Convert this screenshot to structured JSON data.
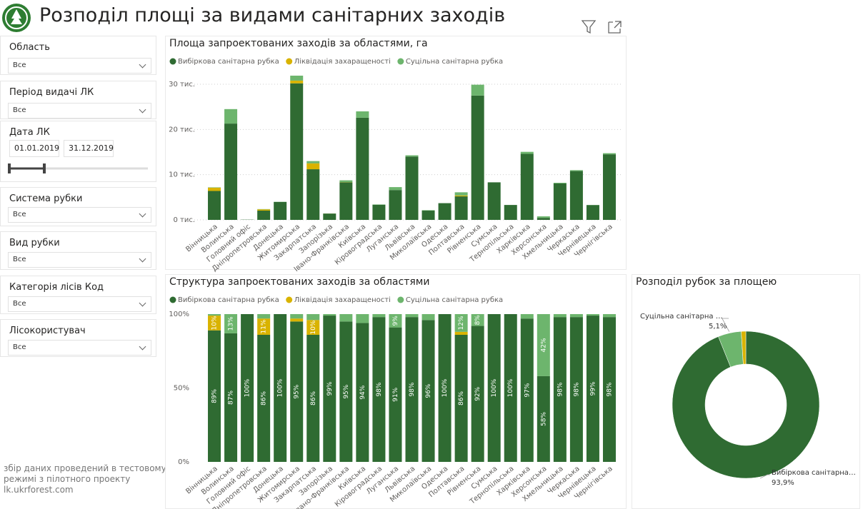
{
  "header": {
    "title": "Розподіл площі за видами санітарних заходів"
  },
  "filters": [
    {
      "label": "Область",
      "value": "Все"
    },
    {
      "label": "Період видачі ЛК",
      "value": "Все"
    },
    {
      "label": "Дата ЛК",
      "from": "01.01.2019",
      "to": "31.12.2019"
    },
    {
      "label": "Система рубки",
      "value": "Все"
    },
    {
      "label": "Вид рубки",
      "value": "Все"
    },
    {
      "label": "Категорія лісів Код",
      "value": "Все"
    },
    {
      "label": "Лісокористувач",
      "value": "Все"
    }
  ],
  "footer_note": [
    "збір даних проведений в тестовому",
    "режимі з пілотного проекту",
    "lk.ukrforest.com"
  ],
  "chart_data": [
    {
      "type": "bar",
      "stacked": true,
      "title": "Площа запроектованих заходів за областями, га",
      "categories": [
        "Вінницька",
        "Волинська",
        "Головний офіс",
        "Дніпропетровська",
        "Донецька",
        "Житомирська",
        "Закарпатська",
        "Запорізька",
        "Івано-Франківська",
        "Київська",
        "Кіровоградська",
        "Луганська",
        "Львівська",
        "Миколаївська",
        "Одеська",
        "Полтавська",
        "Рівненська",
        "Сумська",
        "Тернопільська",
        "Харківська",
        "Херсонська",
        "Хмельницька",
        "Черкаська",
        "Чернівецька",
        "Чернігівська"
      ],
      "series": [
        {
          "name": "Вибіркова санітарна рубка",
          "color": "#2f6b32",
          "values": [
            6400,
            21300,
            50,
            2050,
            3950,
            30200,
            11200,
            1400,
            8300,
            22600,
            3350,
            6600,
            14000,
            2050,
            3700,
            5200,
            27500,
            8300,
            3300,
            14600,
            450,
            8050,
            10800,
            3280,
            14500
          ]
        },
        {
          "name": "Ліквідація захаращеності",
          "color": "#d9b300",
          "values": [
            720,
            0,
            0,
            270,
            0,
            600,
            1300,
            10,
            50,
            0,
            0,
            0,
            0,
            0,
            0,
            200,
            0,
            0,
            0,
            0,
            0,
            0,
            0,
            0,
            0
          ]
        },
        {
          "name": "Суцільна санітарна рубка",
          "color": "#6db56d",
          "values": [
            80,
            3200,
            0,
            70,
            50,
            1100,
            500,
            10,
            400,
            1400,
            70,
            650,
            280,
            90,
            10,
            700,
            2400,
            10,
            5,
            450,
            330,
            150,
            200,
            30,
            250
          ]
        }
      ],
      "ylim": [
        0,
        33000
      ],
      "yticks": [
        {
          "value": 0,
          "label": "0 тис."
        },
        {
          "value": 10000,
          "label": "10 тис."
        },
        {
          "value": 20000,
          "label": "20 тис."
        },
        {
          "value": 30000,
          "label": "30 тис."
        }
      ],
      "grid": true,
      "legend": "top"
    },
    {
      "type": "bar",
      "stacked": true,
      "title": "Структура запроектованих заходів за областями",
      "categories": [
        "Вінницька",
        "Волинська",
        "Головний офіс",
        "Дніпропетровська",
        "Донецька",
        "Житомирська",
        "Закарпатська",
        "Запорізька",
        "Івано-Франківська",
        "Київська",
        "Кіровоградська",
        "Луганська",
        "Львівська",
        "Миколаївська",
        "Одеська",
        "Полтавська",
        "Рівненська",
        "Сумська",
        "Тернопільська",
        "Харківська",
        "Херсонська",
        "Хмельницька",
        "Черкаська",
        "Чернівецька",
        "Чернігівська"
      ],
      "series": [
        {
          "name": "Вибіркова санітарна рубка",
          "color": "#2f6b32",
          "values": [
            89,
            87,
            100,
            86,
            100,
            95,
            86,
            99,
            95,
            94,
            98,
            91,
            98,
            96,
            100,
            86,
            92,
            100,
            100,
            97,
            58,
            98,
            98,
            99,
            98
          ],
          "value_labels": [
            "89%",
            "87%",
            "100%",
            "86%",
            "100%",
            "95%",
            "86%",
            "99%",
            "95%",
            "94%",
            "98%",
            "91%",
            "98%",
            "96%",
            "100%",
            "86%",
            "92%",
            "100%",
            "100%",
            "97%",
            "58%",
            "98%",
            "98%",
            "99%",
            "98%"
          ]
        },
        {
          "name": "Ліквідація захаращеності",
          "color": "#d9b300",
          "values": [
            10,
            0,
            0,
            11,
            0,
            2,
            10,
            0,
            0,
            0,
            0,
            0,
            0,
            0,
            0,
            2,
            0,
            0,
            0,
            0,
            0,
            0,
            0,
            0,
            0
          ],
          "value_labels": [
            "10%",
            null,
            null,
            "11%",
            null,
            null,
            "10%",
            null,
            null,
            null,
            null,
            null,
            null,
            null,
            null,
            null,
            null,
            null,
            null,
            null,
            null,
            null,
            null,
            null,
            null
          ]
        },
        {
          "name": "Суцільна санітарна рубка",
          "color": "#6db56d",
          "values": [
            1,
            13,
            0,
            3,
            0,
            3,
            4,
            1,
            5,
            6,
            2,
            9,
            2,
            4,
            0,
            12,
            8,
            0,
            0,
            3,
            42,
            2,
            2,
            1,
            2
          ],
          "value_labels": [
            null,
            "13%",
            null,
            null,
            null,
            null,
            null,
            null,
            null,
            null,
            null,
            "9%",
            null,
            null,
            null,
            "12%",
            "8%",
            null,
            null,
            null,
            "42%",
            null,
            null,
            null,
            null
          ]
        }
      ],
      "ylim": [
        0,
        100
      ],
      "yticks": [
        {
          "value": 0,
          "label": "0%"
        },
        {
          "value": 50,
          "label": "50%"
        },
        {
          "value": 100,
          "label": "100%"
        }
      ],
      "grid": false,
      "legend": "top"
    },
    {
      "type": "donut",
      "title": "Розподіл рубок за площею",
      "categories": [
        "Вибіркова санітарна ру...",
        "Суцільна санітарна рубка",
        null
      ],
      "values": [
        93.9,
        5.1,
        1.0
      ],
      "value_labels": [
        "93,9%",
        "5,1%",
        null
      ],
      "colors": [
        "#2f6b32",
        "#6db56d",
        "#d9b300"
      ]
    }
  ]
}
